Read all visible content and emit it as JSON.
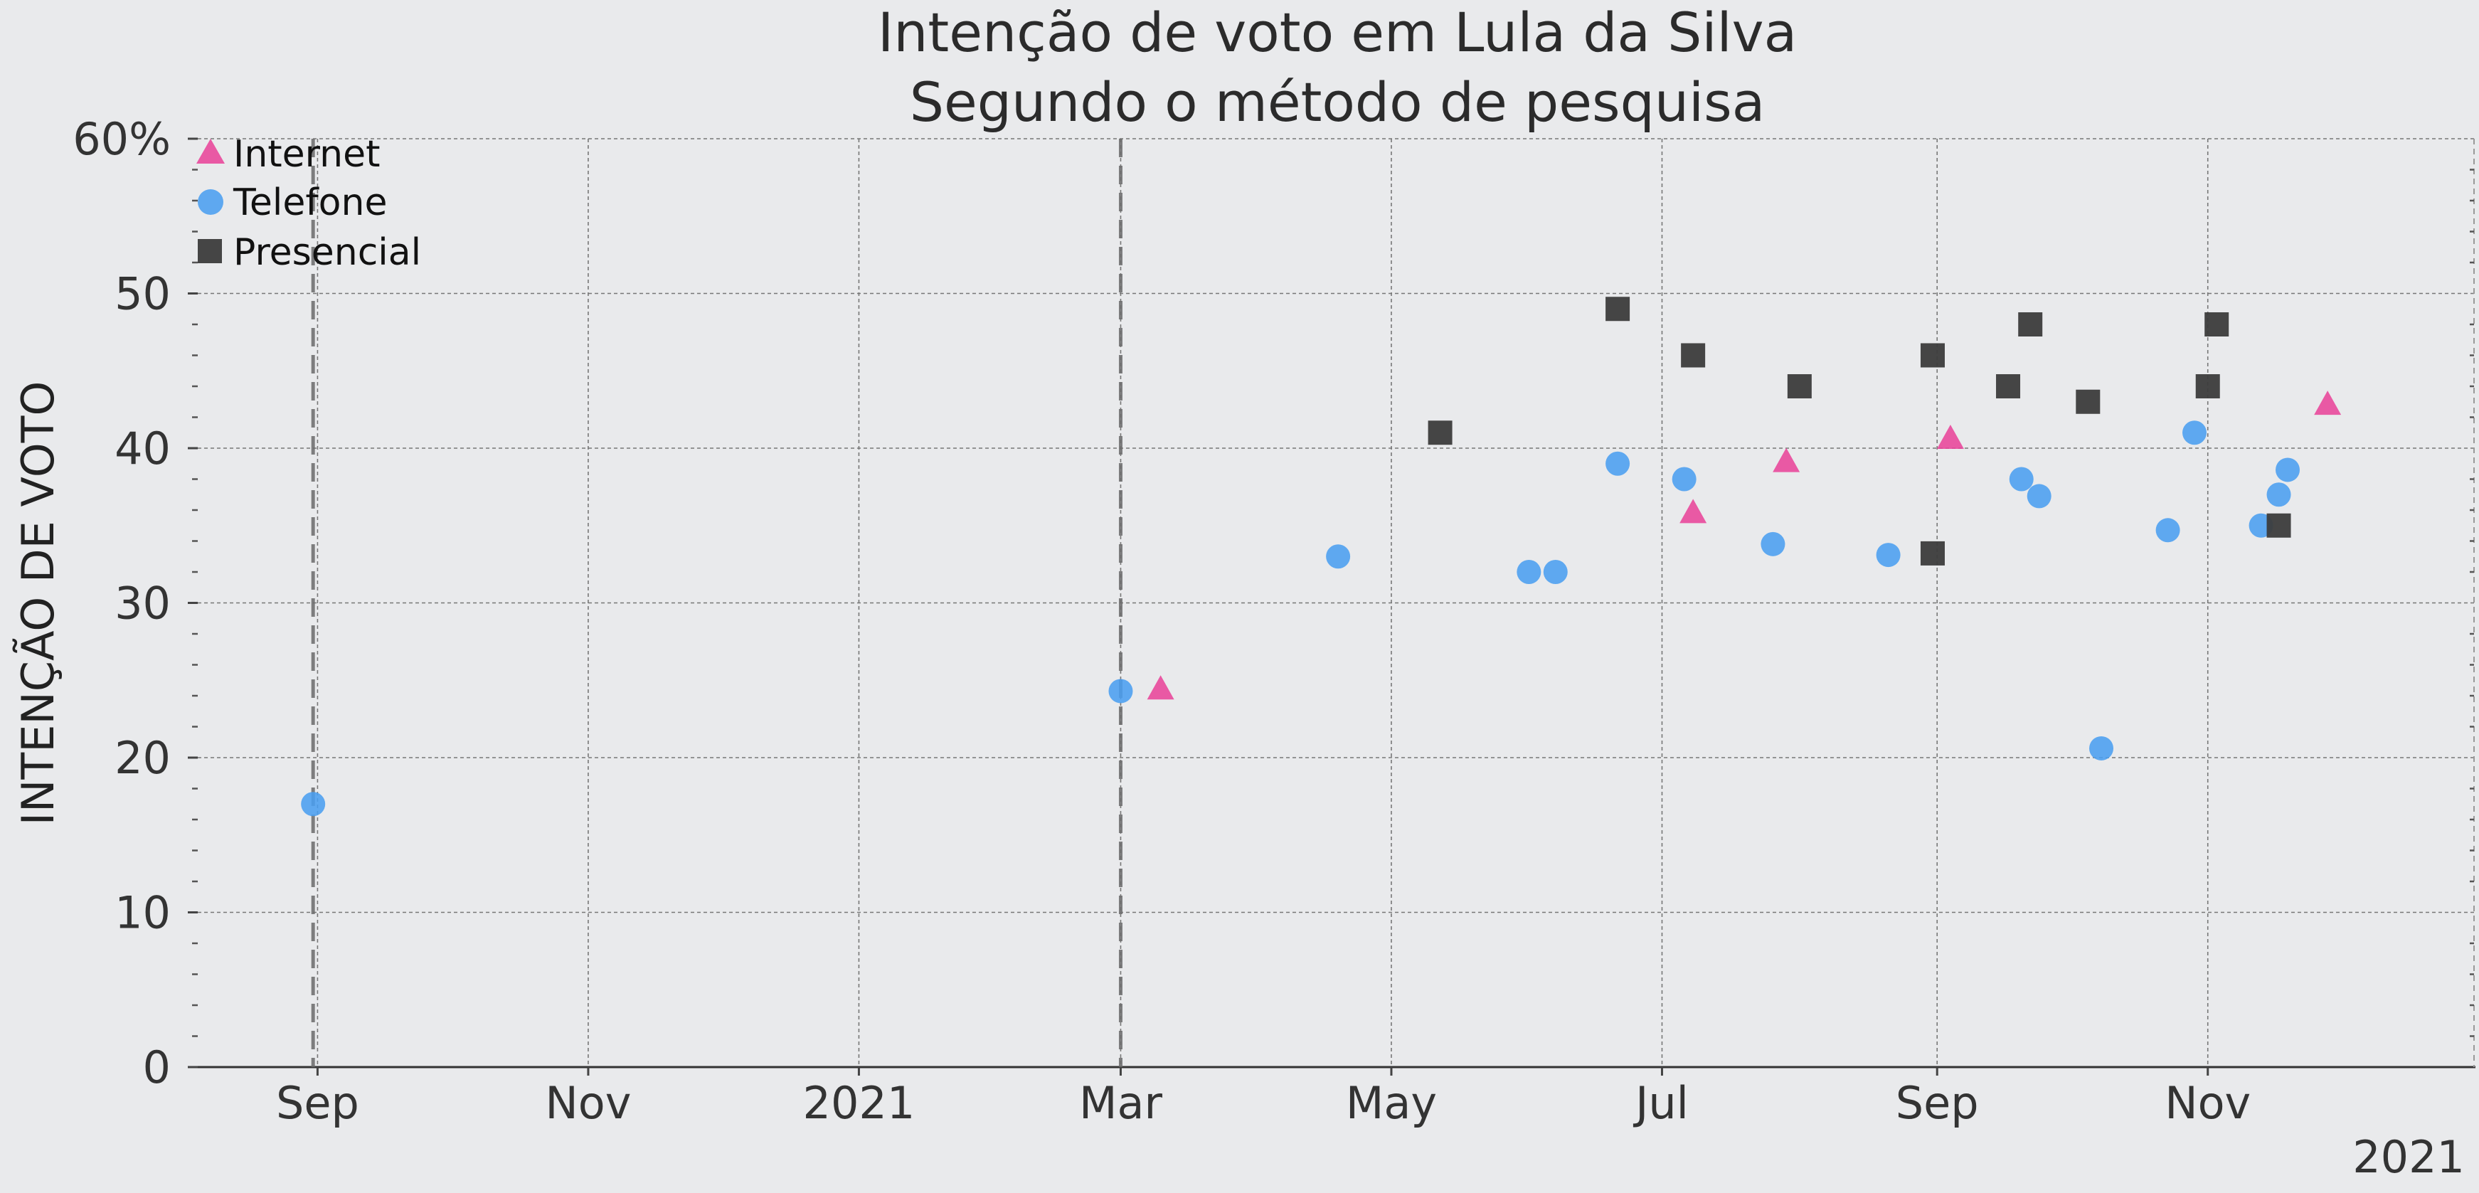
{
  "chart_data": {
    "type": "scatter",
    "title": "Intenção de voto em Lula da Silva",
    "subtitle": "Segundo o método de pesquisa",
    "ylabel": "INTENÇÃO DE VOTO",
    "xlabel": "",
    "ylim": [
      0,
      60
    ],
    "xlim": [
      "2020-08-05",
      "2021-12-31"
    ],
    "grid": true,
    "legend_position": "top-left",
    "x_corner_label": "2021",
    "y_ticks": [
      {
        "value": 0,
        "label": "0"
      },
      {
        "value": 10,
        "label": "10"
      },
      {
        "value": 20,
        "label": "20"
      },
      {
        "value": 30,
        "label": "30"
      },
      {
        "value": 40,
        "label": "40"
      },
      {
        "value": 50,
        "label": "50"
      },
      {
        "value": 60,
        "label": "60%"
      }
    ],
    "x_ticks": [
      {
        "date": "2020-09-01",
        "label": "Sep"
      },
      {
        "date": "2020-11-01",
        "label": "Nov"
      },
      {
        "date": "2021-01-01",
        "label": "2021"
      },
      {
        "date": "2021-03-01",
        "label": "Mar"
      },
      {
        "date": "2021-05-01",
        "label": "May"
      },
      {
        "date": "2021-07-01",
        "label": "Jul"
      },
      {
        "date": "2021-09-01",
        "label": "Sep"
      },
      {
        "date": "2021-11-01",
        "label": "Nov"
      }
    ],
    "vertical_reference_lines": [
      "2020-08-31",
      "2021-03-01"
    ],
    "series": [
      {
        "name": "Internet",
        "marker": "triangle",
        "color": "#e8449a",
        "points": [
          {
            "x": "2021-03-10",
            "y": 24.4
          },
          {
            "x": "2021-07-08",
            "y": 35.8
          },
          {
            "x": "2021-07-29",
            "y": 39.1
          },
          {
            "x": "2021-09-04",
            "y": 40.6
          },
          {
            "x": "2021-11-28",
            "y": 42.8
          }
        ]
      },
      {
        "name": "Telefone",
        "marker": "circle",
        "color": "#4a9ef0",
        "points": [
          {
            "x": "2020-08-31",
            "y": 17
          },
          {
            "x": "2021-03-01",
            "y": 24.3
          },
          {
            "x": "2021-04-19",
            "y": 33
          },
          {
            "x": "2021-06-01",
            "y": 32
          },
          {
            "x": "2021-06-07",
            "y": 32
          },
          {
            "x": "2021-06-21",
            "y": 39
          },
          {
            "x": "2021-07-06",
            "y": 38
          },
          {
            "x": "2021-07-26",
            "y": 33.8
          },
          {
            "x": "2021-08-21",
            "y": 33.1
          },
          {
            "x": "2021-09-20",
            "y": 38
          },
          {
            "x": "2021-09-24",
            "y": 36.9
          },
          {
            "x": "2021-10-08",
            "y": 20.6
          },
          {
            "x": "2021-10-23",
            "y": 34.7
          },
          {
            "x": "2021-10-29",
            "y": 41
          },
          {
            "x": "2021-11-13",
            "y": 35
          },
          {
            "x": "2021-11-17",
            "y": 37
          },
          {
            "x": "2021-11-19",
            "y": 38.6
          }
        ]
      },
      {
        "name": "Presencial",
        "marker": "square",
        "color": "#3c3c3c",
        "points": [
          {
            "x": "2021-05-12",
            "y": 41
          },
          {
            "x": "2021-06-21",
            "y": 49
          },
          {
            "x": "2021-07-08",
            "y": 46
          },
          {
            "x": "2021-08-01",
            "y": 44
          },
          {
            "x": "2021-08-31",
            "y": 46
          },
          {
            "x": "2021-08-31",
            "y": 33.2
          },
          {
            "x": "2021-09-17",
            "y": 44
          },
          {
            "x": "2021-09-22",
            "y": 48
          },
          {
            "x": "2021-10-05",
            "y": 43
          },
          {
            "x": "2021-11-01",
            "y": 44
          },
          {
            "x": "2021-11-03",
            "y": 48
          },
          {
            "x": "2021-11-17",
            "y": 35
          }
        ]
      }
    ]
  }
}
